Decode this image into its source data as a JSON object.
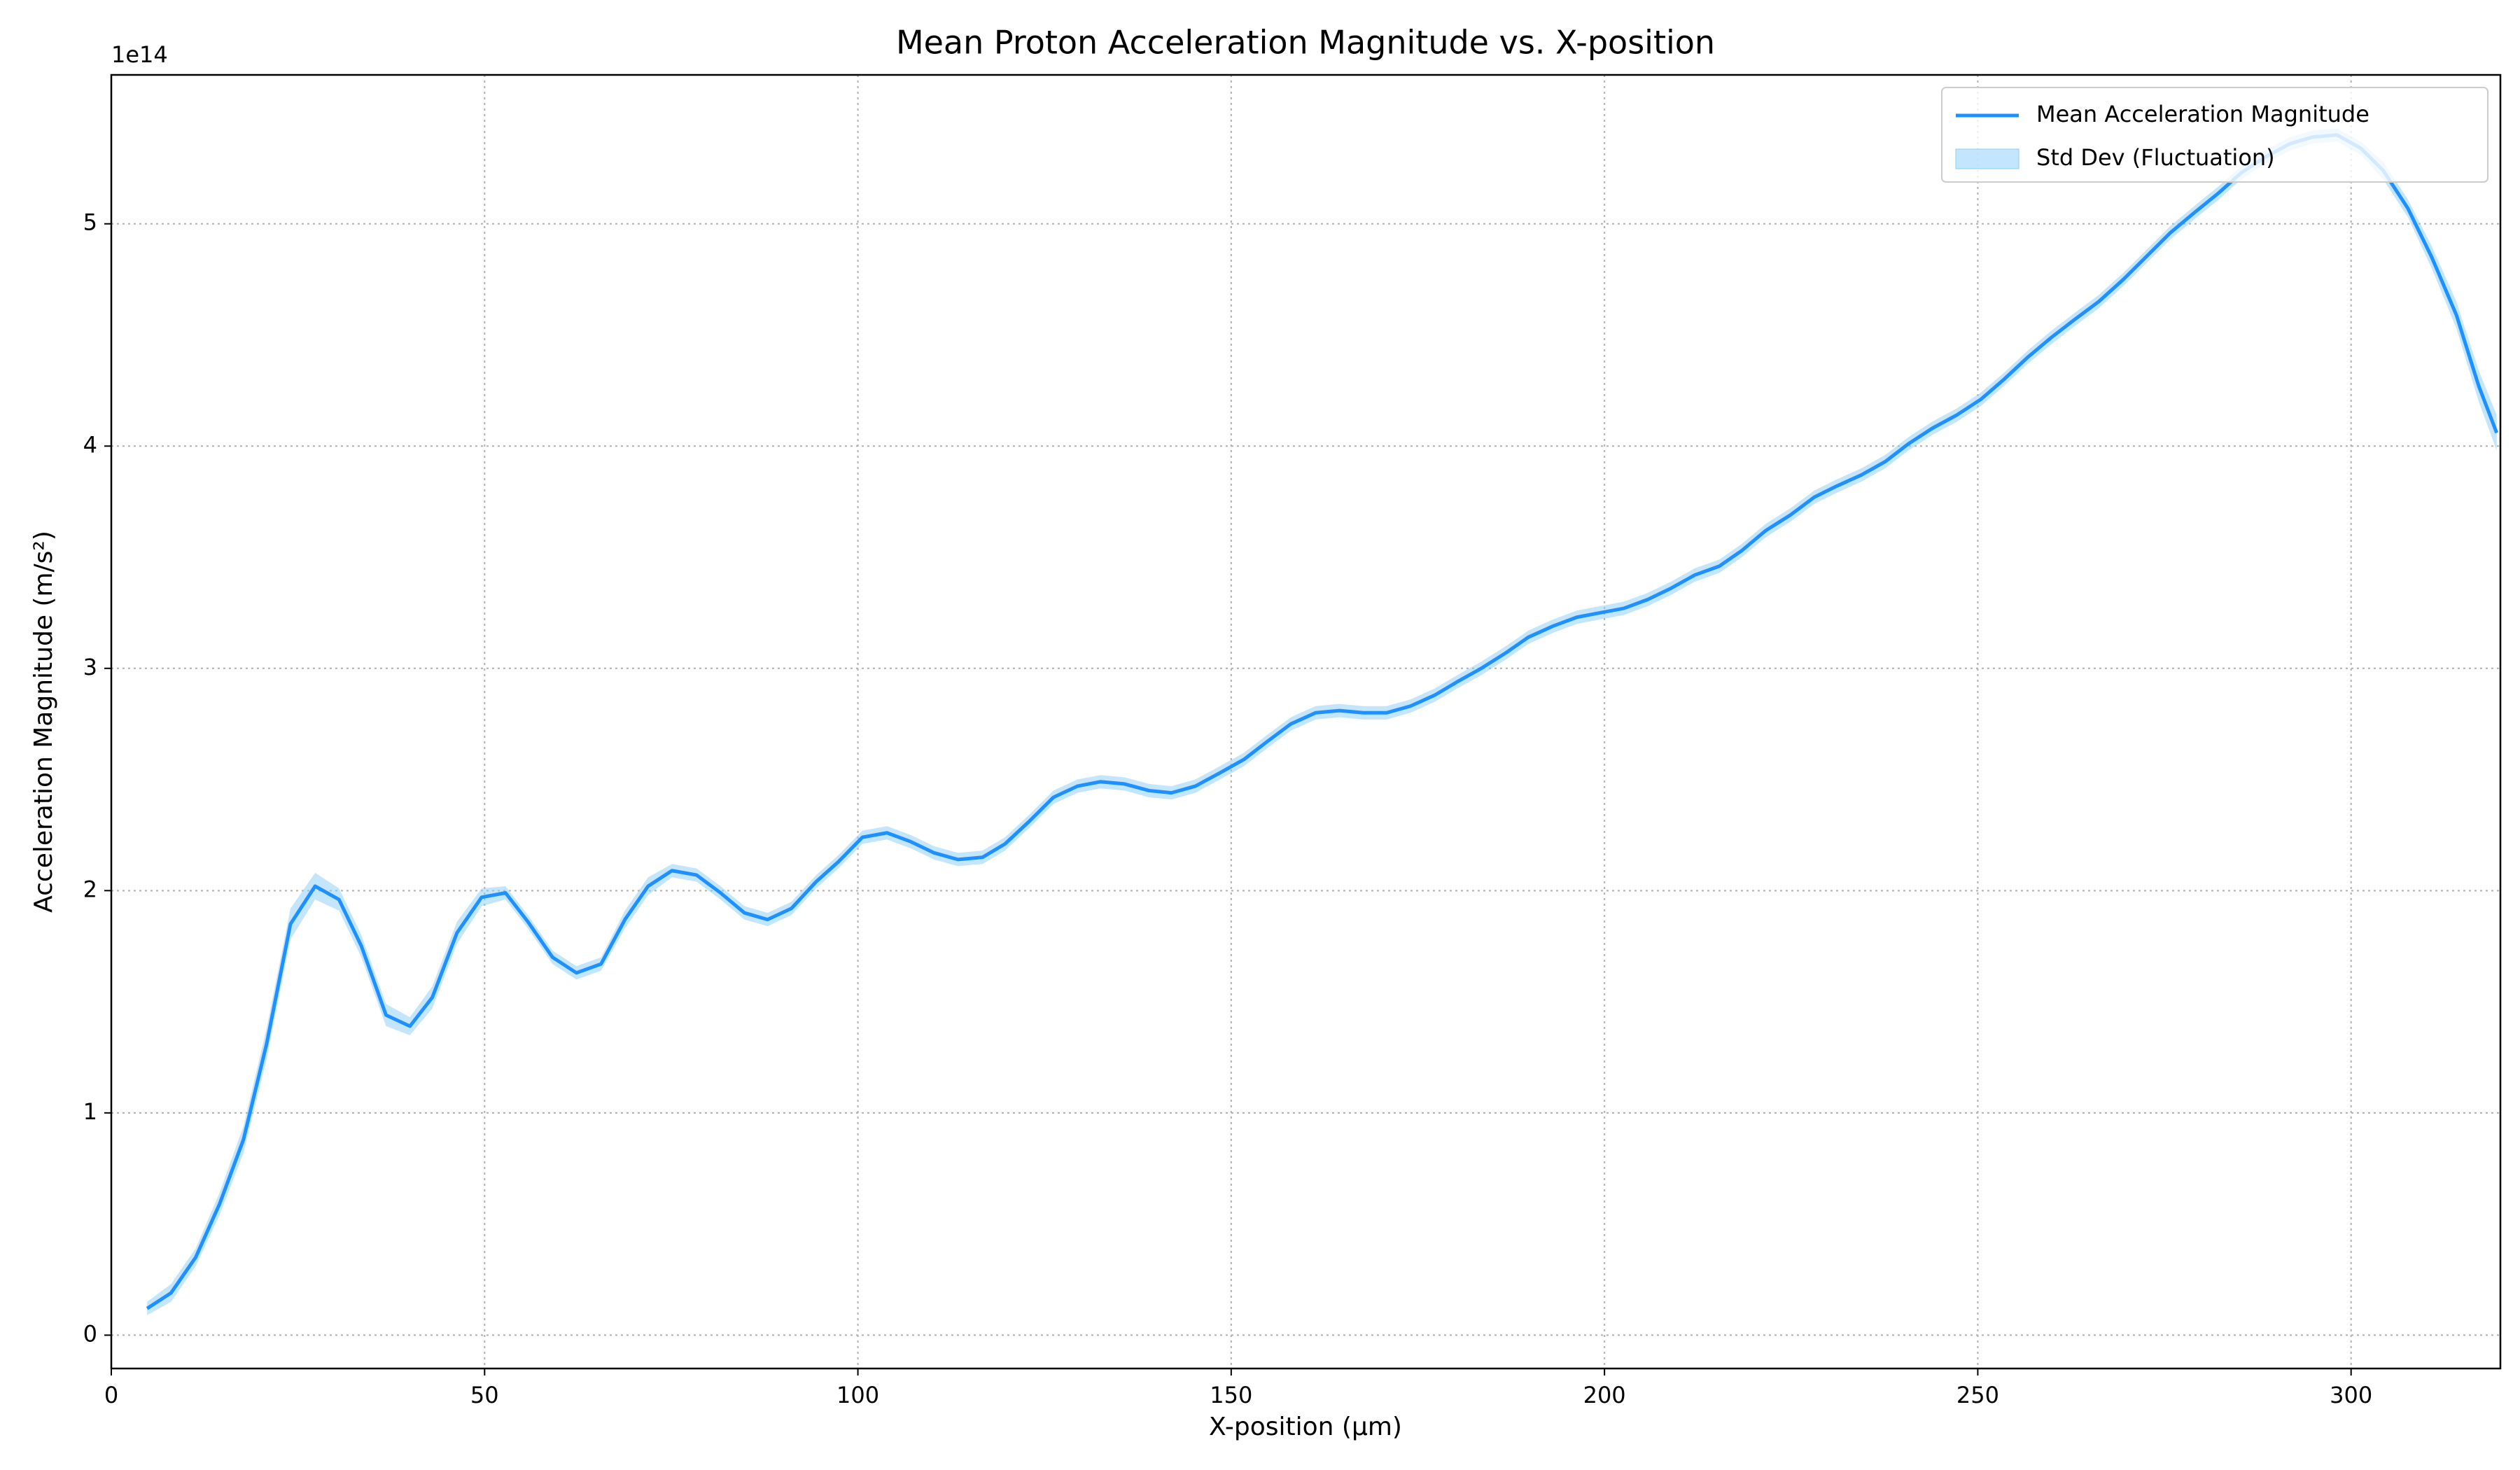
{
  "chart_data": {
    "type": "line",
    "title": "Mean Proton Acceleration Magnitude vs. X-position",
    "x_label": "X-position (μm)",
    "y_label": "Acceleration Magnitude (m/s²)",
    "y_offset_label": "1e14",
    "x": [
      4.8,
      8,
      11.3,
      14.5,
      17.7,
      20.8,
      24,
      27.3,
      30.5,
      33.5,
      36.8,
      40,
      43,
      46.3,
      49.6,
      52.8,
      55.8,
      59.1,
      62.3,
      65.6,
      68.8,
      71.9,
      75.1,
      78.4,
      81.6,
      84.8,
      87.9,
      91.1,
      94.4,
      97.4,
      100.6,
      103.9,
      107.1,
      110.2,
      113.4,
      116.7,
      119.7,
      122.9,
      126.2,
      129.4,
      132.5,
      135.7,
      139,
      142,
      145.2,
      148.5,
      151.7,
      154.8,
      158,
      161.3,
      164.5,
      167.7,
      170.8,
      174,
      177.3,
      180.3,
      183.5,
      186.8,
      189.8,
      193.1,
      196.3,
      199.4,
      202.6,
      205.8,
      208.9,
      212.1,
      215.4,
      218.4,
      221.6,
      224.9,
      228.1,
      231.1,
      234.4,
      237.6,
      240.7,
      243.9,
      247.2,
      250.4,
      253.5,
      256.7,
      259.9,
      263,
      266.2,
      269.5,
      272.5,
      275.8,
      279,
      282.3,
      285.3,
      288.5,
      291.8,
      294.8,
      298.1,
      301.3,
      304.3,
      307.6,
      310.8,
      314.1,
      317.1,
      319.5
    ],
    "series": [
      {
        "name": "Mean Acceleration Magnitude",
        "color": "#1e90ff",
        "values": [
          0.12,
          0.19,
          0.35,
          0.59,
          0.88,
          1.31,
          1.85,
          2.02,
          1.96,
          1.75,
          1.44,
          1.39,
          1.52,
          1.81,
          1.97,
          1.99,
          1.86,
          1.7,
          1.63,
          1.67,
          1.87,
          2.02,
          2.09,
          2.07,
          1.99,
          1.9,
          1.87,
          1.92,
          2.04,
          2.13,
          2.24,
          2.26,
          2.22,
          2.17,
          2.14,
          2.15,
          2.21,
          2.31,
          2.42,
          2.47,
          2.49,
          2.48,
          2.45,
          2.44,
          2.47,
          2.53,
          2.59,
          2.67,
          2.75,
          2.8,
          2.81,
          2.8,
          2.8,
          2.83,
          2.88,
          2.94,
          3.0,
          3.07,
          3.14,
          3.19,
          3.23,
          3.25,
          3.27,
          3.31,
          3.36,
          3.42,
          3.46,
          3.53,
          3.62,
          3.69,
          3.77,
          3.82,
          3.87,
          3.93,
          4.01,
          4.08,
          4.14,
          4.21,
          4.3,
          4.4,
          4.49,
          4.57,
          4.65,
          4.75,
          4.85,
          4.96,
          5.05,
          5.14,
          5.23,
          5.3,
          5.36,
          5.39,
          5.4,
          5.34,
          5.24,
          5.07,
          4.85,
          4.59,
          4.27,
          4.06
        ]
      },
      {
        "name": "Std Dev (Fluctuation)",
        "color": "#87cefa",
        "type": "band",
        "values": [
          0.03,
          0.04,
          0.04,
          0.05,
          0.06,
          0.07,
          0.07,
          0.06,
          0.05,
          0.05,
          0.05,
          0.04,
          0.05,
          0.05,
          0.04,
          0.03,
          0.03,
          0.03,
          0.03,
          0.03,
          0.04,
          0.04,
          0.03,
          0.03,
          0.03,
          0.03,
          0.03,
          0.03,
          0.03,
          0.03,
          0.03,
          0.03,
          0.03,
          0.03,
          0.03,
          0.03,
          0.03,
          0.03,
          0.03,
          0.03,
          0.03,
          0.03,
          0.03,
          0.03,
          0.03,
          0.03,
          0.03,
          0.03,
          0.03,
          0.03,
          0.03,
          0.03,
          0.03,
          0.03,
          0.03,
          0.03,
          0.03,
          0.03,
          0.03,
          0.03,
          0.03,
          0.03,
          0.03,
          0.03,
          0.03,
          0.03,
          0.03,
          0.03,
          0.03,
          0.03,
          0.03,
          0.03,
          0.03,
          0.03,
          0.03,
          0.03,
          0.03,
          0.03,
          0.03,
          0.03,
          0.03,
          0.03,
          0.03,
          0.03,
          0.03,
          0.03,
          0.03,
          0.03,
          0.03,
          0.03,
          0.03,
          0.03,
          0.03,
          0.03,
          0.04,
          0.04,
          0.05,
          0.06,
          0.07,
          0.08
        ]
      }
    ],
    "xlim": [
      0,
      320
    ],
    "xticks": [
      0,
      50,
      100,
      150,
      200,
      250,
      300
    ],
    "ylim": [
      -0.15,
      5.67
    ],
    "yticks": [
      0,
      1,
      2,
      3,
      4,
      5
    ],
    "grid": true,
    "legend": "upper right"
  }
}
